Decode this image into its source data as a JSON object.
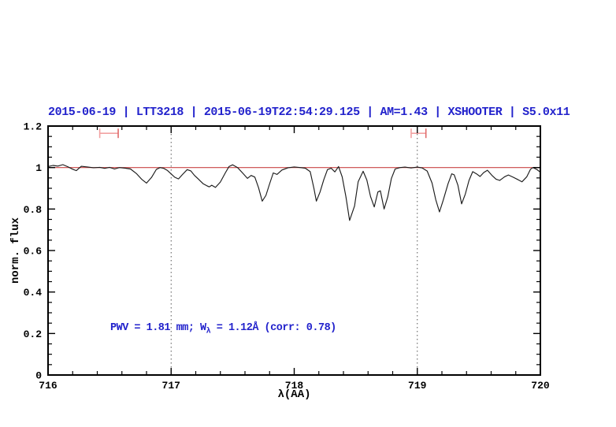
{
  "title": {
    "text": "2015-06-19 | LTT3218 | 2015-06-19T22:54:29.125 | AM=1.43 | XSHOOTER | S5.0x11"
  },
  "annotation": {
    "before_sub": "PWV  =  1.81 mm; W",
    "sub": "λ",
    "after_sub": "  =  1.12Å  (corr: 0.78)"
  },
  "colors": {
    "title_blue": "#2222cc",
    "annotation_blue": "#2222cc",
    "spectrum_black": "#1c1c1c",
    "continuum_red": "#c94444",
    "marker_pink": "#f2a2a2",
    "marker_cap_red": "#e06c6c",
    "dotted_gray": "#555555",
    "frame_black": "#000000"
  },
  "chart_data": {
    "type": "line",
    "title": "2015-06-19 | LTT3218 | 2015-06-19T22:54:29.125 | AM=1.43 | XSHOOTER | S5.0x11",
    "xlabel": "λ(AA)",
    "ylabel": "norm. flux",
    "xlim": [
      716,
      720
    ],
    "ylim": [
      0,
      1.2
    ],
    "grid": "off",
    "x_major_ticks": [
      716,
      717,
      718,
      719,
      720
    ],
    "x_tick_labels": [
      "716",
      "717",
      "718",
      "719",
      "720"
    ],
    "x_minor_step": 0.2,
    "y_major_ticks": [
      0,
      0.2,
      0.4,
      0.6,
      0.8,
      1,
      1.2
    ],
    "y_tick_labels": [
      "0",
      "0.2",
      "0.4",
      "0.6",
      "0.8",
      "1",
      "1.2"
    ],
    "y_minor_step": 0.05,
    "dotted_vlines": [
      717,
      719
    ],
    "continuum_line": {
      "flux": 1.0
    },
    "range_markers": [
      {
        "x1": 716.42,
        "x2": 716.57,
        "flux": 1.165
      },
      {
        "x1": 718.95,
        "x2": 719.07,
        "flux": 1.165
      }
    ],
    "series": [
      {
        "name": "normalized spectrum",
        "x": [
          716.0,
          716.04,
          716.08,
          716.12,
          716.16,
          716.2,
          716.23,
          716.27,
          716.32,
          716.37,
          716.42,
          716.46,
          716.5,
          716.54,
          716.58,
          716.63,
          716.67,
          716.72,
          716.76,
          716.8,
          716.84,
          716.88,
          716.91,
          716.94,
          716.97,
          717.0,
          717.03,
          717.06,
          717.09,
          717.13,
          717.16,
          717.19,
          717.22,
          717.26,
          717.29,
          717.31,
          717.33,
          717.36,
          717.4,
          717.44,
          717.47,
          717.5,
          717.54,
          717.58,
          717.62,
          717.65,
          717.68,
          717.71,
          717.74,
          717.77,
          717.8,
          717.83,
          717.86,
          717.9,
          717.95,
          718.0,
          718.05,
          718.09,
          718.13,
          718.16,
          718.18,
          718.21,
          718.24,
          718.27,
          718.3,
          718.33,
          718.36,
          718.39,
          718.42,
          718.45,
          718.49,
          718.52,
          718.56,
          718.59,
          718.62,
          718.65,
          718.68,
          718.7,
          718.73,
          718.76,
          718.79,
          718.82,
          718.86,
          718.9,
          718.95,
          719.0,
          719.04,
          719.08,
          719.12,
          719.15,
          719.18,
          719.21,
          719.25,
          719.28,
          719.3,
          719.33,
          719.36,
          719.39,
          719.42,
          719.45,
          719.48,
          719.51,
          719.54,
          719.57,
          719.61,
          719.64,
          719.67,
          719.71,
          719.74,
          719.78,
          719.82,
          719.85,
          719.89,
          719.92,
          719.94,
          719.97,
          720.0
        ],
        "y": [
          1.005,
          1.01,
          1.007,
          1.014,
          1.004,
          0.992,
          0.985,
          1.006,
          1.003,
          0.999,
          1.001,
          0.996,
          1.001,
          0.993,
          1.0,
          0.997,
          0.993,
          0.97,
          0.944,
          0.925,
          0.952,
          0.991,
          1.0,
          0.996,
          0.986,
          0.969,
          0.953,
          0.945,
          0.965,
          0.99,
          0.984,
          0.962,
          0.945,
          0.922,
          0.912,
          0.907,
          0.915,
          0.904,
          0.93,
          0.974,
          1.005,
          1.013,
          1.0,
          0.974,
          0.948,
          0.962,
          0.954,
          0.903,
          0.838,
          0.866,
          0.921,
          0.974,
          0.967,
          0.988,
          0.999,
          1.003,
          1.0,
          0.997,
          0.98,
          0.9,
          0.838,
          0.882,
          0.941,
          0.99,
          0.997,
          0.979,
          1.005,
          0.955,
          0.86,
          0.745,
          0.815,
          0.932,
          0.982,
          0.94,
          0.86,
          0.81,
          0.882,
          0.888,
          0.8,
          0.858,
          0.948,
          0.993,
          1.0,
          1.002,
          0.998,
          1.002,
          0.998,
          0.983,
          0.925,
          0.845,
          0.786,
          0.842,
          0.922,
          0.97,
          0.965,
          0.915,
          0.825,
          0.872,
          0.938,
          0.98,
          0.97,
          0.957,
          0.976,
          0.987,
          0.96,
          0.944,
          0.938,
          0.956,
          0.964,
          0.953,
          0.941,
          0.931,
          0.956,
          0.992,
          1.0,
          0.991,
          0.978
        ]
      }
    ]
  }
}
